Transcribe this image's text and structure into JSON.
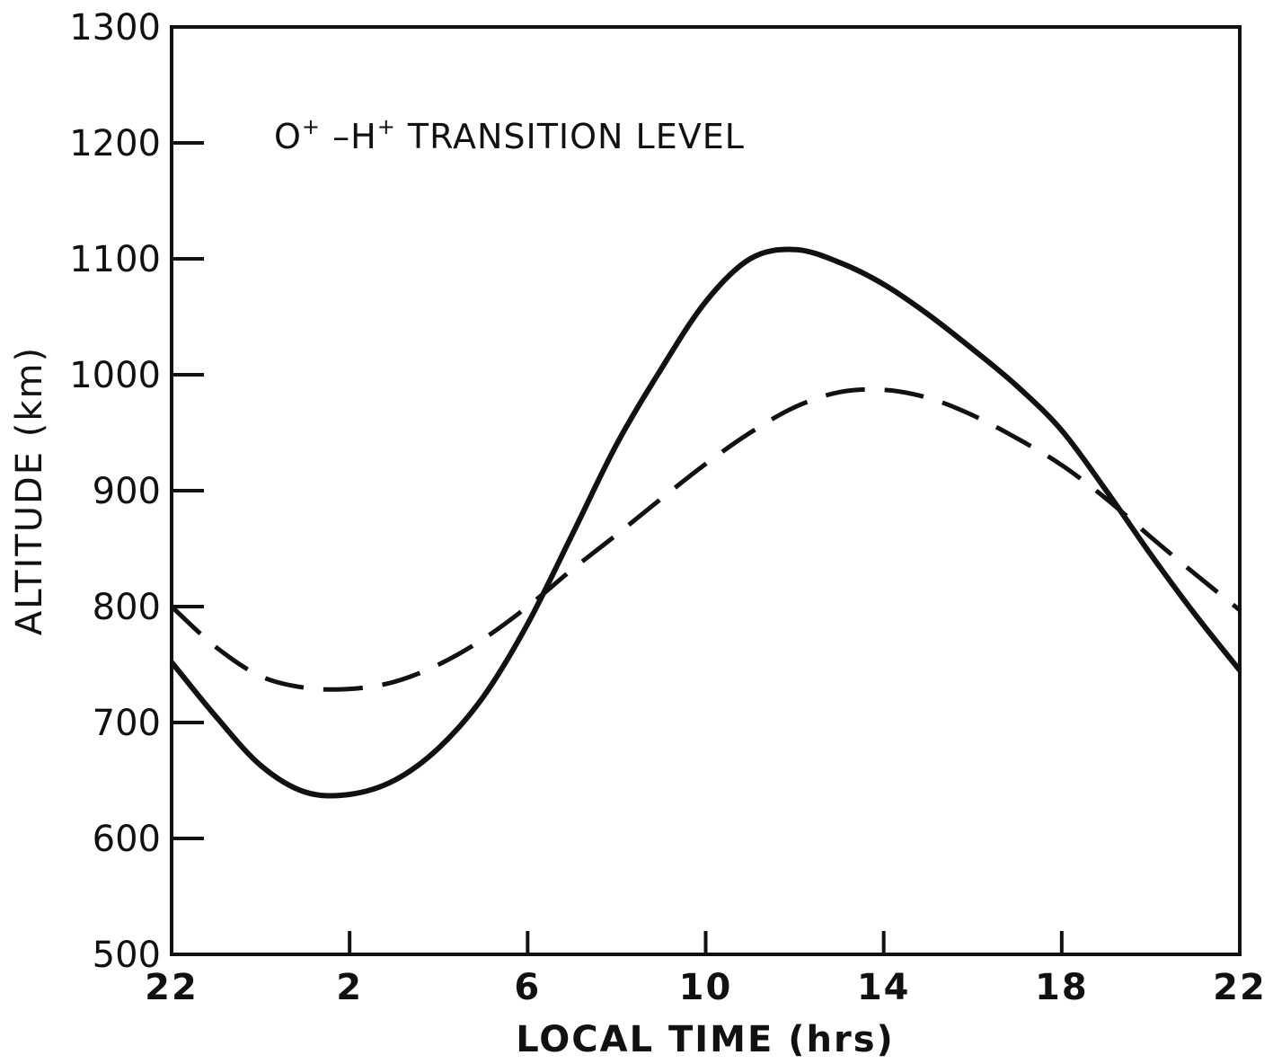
{
  "chart_data": {
    "type": "line",
    "annotation": {
      "ion1": "O",
      "ion1_charge": "+",
      "separator": " –",
      "ion2": "H",
      "ion2_charge": "+",
      "rest": " TRANSITION LEVEL"
    },
    "xlabel": "LOCAL TIME (hrs)",
    "ylabel": "ALTITUDE (km)",
    "xlim": [
      22,
      46
    ],
    "ylim": [
      500,
      1300
    ],
    "x_unit": "local time, hours (wraps past 24; 46 = 22)",
    "x_ticks": [
      {
        "value": 22,
        "label": "22"
      },
      {
        "value": 26,
        "label": "2"
      },
      {
        "value": 30,
        "label": "6"
      },
      {
        "value": 34,
        "label": "10"
      },
      {
        "value": 38,
        "label": "14"
      },
      {
        "value": 42,
        "label": "18"
      },
      {
        "value": 46,
        "label": "22"
      }
    ],
    "y_ticks": [
      {
        "value": 500,
        "label": "500"
      },
      {
        "value": 600,
        "label": "600"
      },
      {
        "value": 700,
        "label": "700"
      },
      {
        "value": 800,
        "label": "800"
      },
      {
        "value": 900,
        "label": "900"
      },
      {
        "value": 1000,
        "label": "1000"
      },
      {
        "value": 1100,
        "label": "1100"
      },
      {
        "value": 1200,
        "label": "1200"
      },
      {
        "value": 1300,
        "label": "1300"
      }
    ],
    "grid": false,
    "legend": "none",
    "series": [
      {
        "style": "solid",
        "color": "#111111",
        "x": [
          22,
          23,
          24,
          25,
          26,
          27,
          28,
          29,
          30,
          31,
          32,
          33,
          34,
          35,
          36,
          37,
          38,
          39,
          40,
          41,
          42,
          43,
          44,
          45,
          46
        ],
        "y": [
          752,
          705,
          663,
          640,
          638,
          650,
          678,
          722,
          785,
          862,
          940,
          1005,
          1063,
          1100,
          1108,
          1097,
          1078,
          1052,
          1022,
          990,
          952,
          900,
          845,
          793,
          745
        ]
      },
      {
        "style": "dashed",
        "color": "#111111",
        "x": [
          22,
          23,
          24,
          25,
          26,
          27,
          28,
          29,
          30,
          31,
          32,
          33,
          34,
          35,
          36,
          37,
          38,
          39,
          40,
          41,
          42,
          43,
          44,
          45,
          46
        ],
        "y": [
          800,
          765,
          740,
          730,
          729,
          735,
          750,
          772,
          800,
          832,
          862,
          893,
          923,
          950,
          972,
          985,
          987,
          980,
          965,
          945,
          922,
          893,
          860,
          828,
          797
        ]
      }
    ]
  }
}
